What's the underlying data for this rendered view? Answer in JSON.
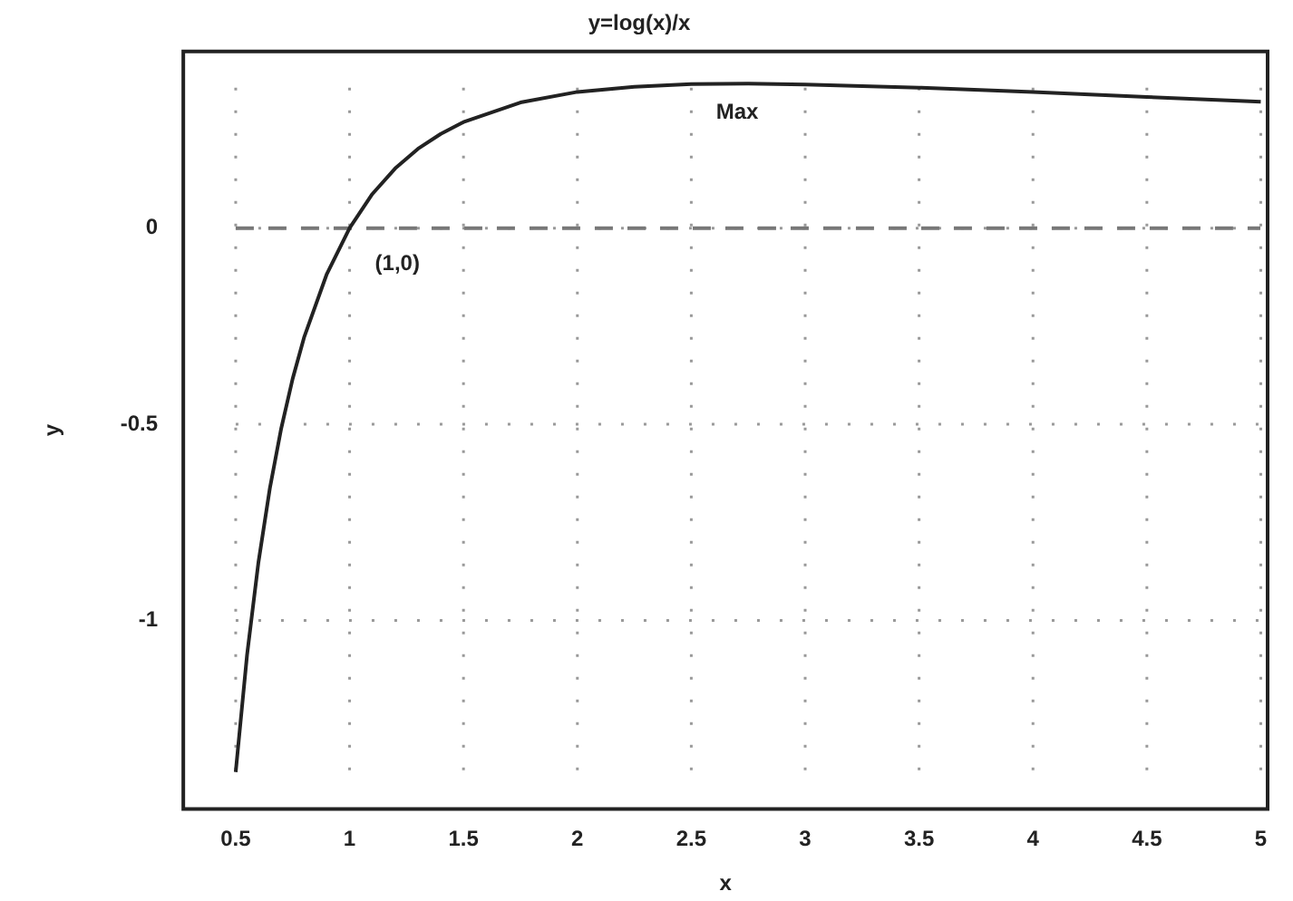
{
  "chart_data": {
    "type": "line",
    "title": "y=log(x)/x",
    "xlabel": "x",
    "ylabel": "y",
    "x": [
      0.5,
      0.55,
      0.6,
      0.65,
      0.7,
      0.75,
      0.8,
      0.9,
      1,
      1.1,
      1.2,
      1.3,
      1.4,
      1.5,
      1.75,
      2,
      2.25,
      2.5,
      2.75,
      3,
      3.5,
      4,
      4.5,
      5
    ],
    "series": [
      {
        "color": "#222222",
        "values": [
          -1.386,
          -1.087,
          -0.851,
          -0.663,
          -0.51,
          -0.384,
          -0.279,
          -0.117,
          0,
          0.087,
          0.152,
          0.202,
          0.24,
          0.27,
          0.32,
          0.347,
          0.36,
          0.367,
          0.368,
          0.366,
          0.358,
          0.347,
          0.334,
          0.322
        ]
      }
    ],
    "xlim": [
      0.27,
      5.03
    ],
    "xticks": [
      0.5,
      1,
      1.5,
      2,
      2.5,
      3,
      3.5,
      4,
      4.5,
      5
    ],
    "ylim": [
      -1.48,
      0.45
    ],
    "yticks": [
      -1,
      -0.5,
      0
    ],
    "grid": true,
    "legend": false,
    "marker": "none",
    "line_style": "solid",
    "ref_lines": [
      {
        "axis": "y",
        "value": 0,
        "color": "#777777",
        "line_style": "dashed"
      }
    ],
    "annotations": [
      {
        "text": "(1,0)",
        "x": 1,
        "y": 0
      },
      {
        "text": "Max",
        "x": 2.72,
        "y": 0.368
      }
    ]
  }
}
